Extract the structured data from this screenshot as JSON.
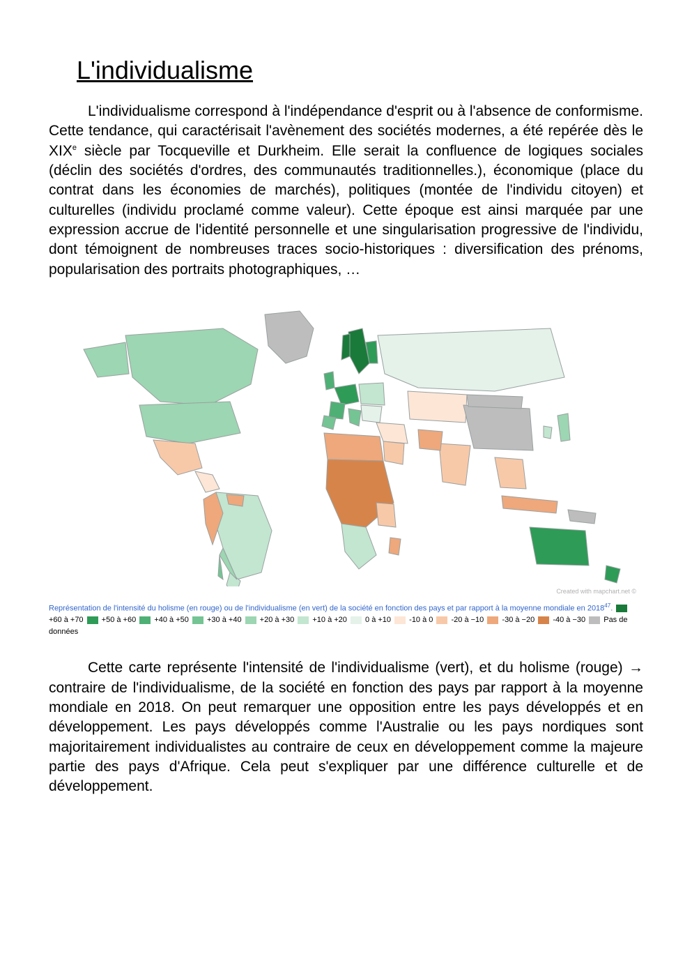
{
  "title": "L'individualisme",
  "paragraph1": {
    "full": "L'individualisme correspond à l'indépendance d'esprit ou à l'absence de conformisme. Cette tendance, qui caractérisait l'avènement des sociétés modernes, a été repérée dès le XIX",
    "sup": "e",
    "rest": " siècle par Tocqueville et Durkheim. Elle serait la confluence de logiques sociales (déclin des sociétés d'ordres, des communautés traditionnelles.), économique (place du contrat dans les économies de marchés), politiques (montée de l'individu citoyen) et culturelles (individu proclamé comme valeur). Cette époque est ainsi marquée par une expression accrue de l'identité personnelle et une singularisation progressive de l'individu, dont témoignent de nombreuses traces socio-historiques : diversification des prénoms, popularisation des portraits photographiques, …"
  },
  "map": {
    "credit": "Created with mapchart.net ©",
    "ocean_color": "#ffffff",
    "outline_color": "#9aa0a0",
    "colors": {
      "+60 à +70": "#1a7a3a",
      "+50 à +60": "#2e9b57",
      "+40 à +50": "#4fb075",
      "+30 à +40": "#75c494",
      "+20 à +30": "#9cd6b2",
      "+10 à +20": "#c2e6d0",
      "0 à +10": "#e4f2ea",
      "-10 à 0": "#fde6d6",
      "-20 à −10": "#f8c9a8",
      "-30 à −20": "#eea87b",
      "-40 à −30": "#d7844a",
      "no_data": "#bdbdbd"
    }
  },
  "legend": {
    "intro_blue": "Représentation de l'intensité du holisme (en rouge) ou de l'individualisme (en vert) de la société en fonction des pays et par rapport à la moyenne mondiale en 2018",
    "sup": "47",
    "intro_period": ".",
    "items": [
      {
        "color": "#1a7a3a",
        "label": "+60 à +70"
      },
      {
        "color": "#2e9b57",
        "label": "+50 à +60"
      },
      {
        "color": "#4fb075",
        "label": "+40 à +50"
      },
      {
        "color": "#75c494",
        "label": "+30 à +40"
      },
      {
        "color": "#9cd6b2",
        "label": "+20 à +30"
      },
      {
        "color": "#c2e6d0",
        "label": "+10 à +20"
      },
      {
        "color": "#e4f2ea",
        "label": "0 à +10"
      },
      {
        "color": "#fde6d6",
        "label": "-10 à 0"
      },
      {
        "color": "#f8c9a8",
        "label": "-20 à −10"
      },
      {
        "color": "#eea87b",
        "label": "-30 à −20"
      },
      {
        "color": "#d7844a",
        "label": "-40 à −30"
      },
      {
        "color": "#bdbdbd",
        "label": "Pas de données"
      }
    ]
  },
  "paragraph2": "Cette carte représente l'intensité de l'individualisme (vert), et du holisme (rouge) → contraire de l'individualisme, de la société en fonction des pays par rapport à la moyenne mondiale en 2018. On peut remarquer une opposition entre les pays développés et en développement. Les pays développés comme l'Australie ou les pays nordiques sont majoritairement individualistes au contraire de ceux en développement comme la majeure partie des pays d'Afrique. Cela peut s'expliquer par une différence culturelle et de développement."
}
